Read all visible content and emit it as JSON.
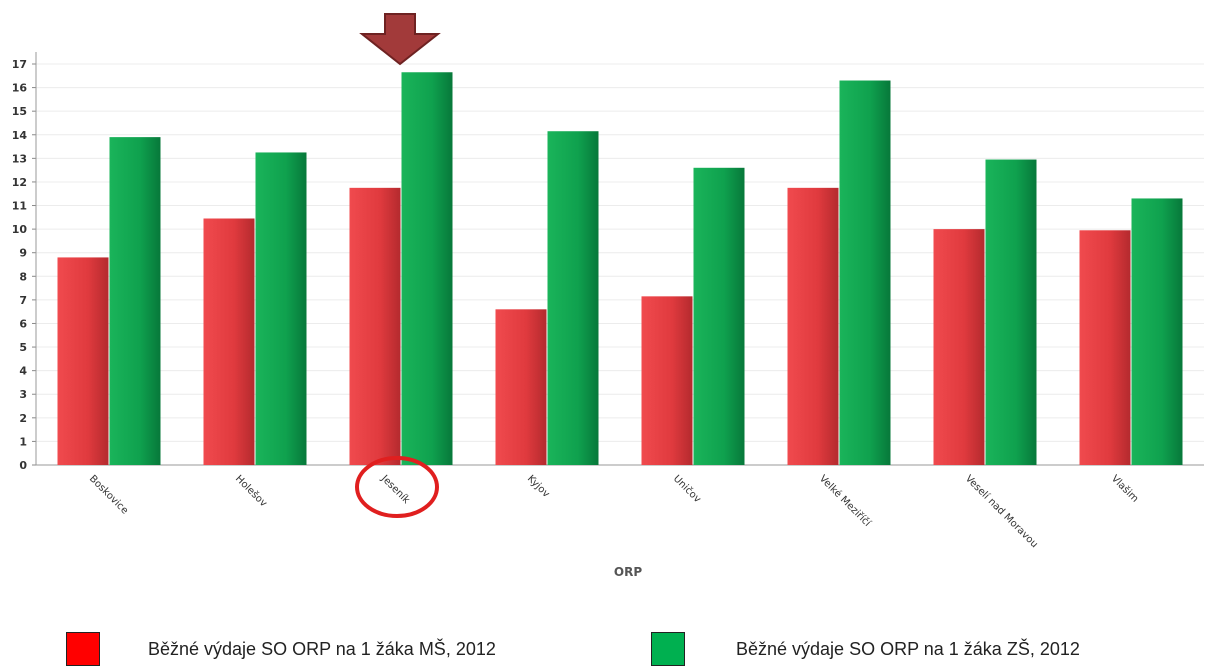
{
  "chart_data": {
    "type": "bar",
    "categories": [
      "Boskovice",
      "Holešov",
      "Jeseník",
      "Kyjov",
      "Uničov",
      "Velké Meziříčí",
      "Veselí nad Moravou",
      "Vlašim"
    ],
    "series": [
      {
        "name": "Běžné výdaje SO ORP na 1 žáka MŠ, 2012",
        "values": [
          8.8,
          10.45,
          11.75,
          6.6,
          7.15,
          11.75,
          10.0,
          9.95
        ],
        "color": "#e8383d"
      },
      {
        "name": "Běžné výdaje SO ORP na 1 žáka ZŠ, 2012",
        "values": [
          13.9,
          13.25,
          16.65,
          14.15,
          12.6,
          16.3,
          12.95,
          11.3
        ],
        "color": "#0fa14e"
      }
    ],
    "xlabel": "ORP",
    "ylabel": "",
    "ylim": [
      0,
      17
    ],
    "yticks": [
      0,
      1,
      2,
      3,
      4,
      5,
      6,
      7,
      8,
      9,
      10,
      11,
      12,
      13,
      14,
      15,
      16,
      17
    ],
    "grid": true,
    "legend_position": "bottom",
    "highlight": {
      "category": "Jeseník",
      "marker": "arrow-down-and-circle",
      "arrow_color": "#a23a3a",
      "circle_color": "#e01f1f"
    }
  }
}
